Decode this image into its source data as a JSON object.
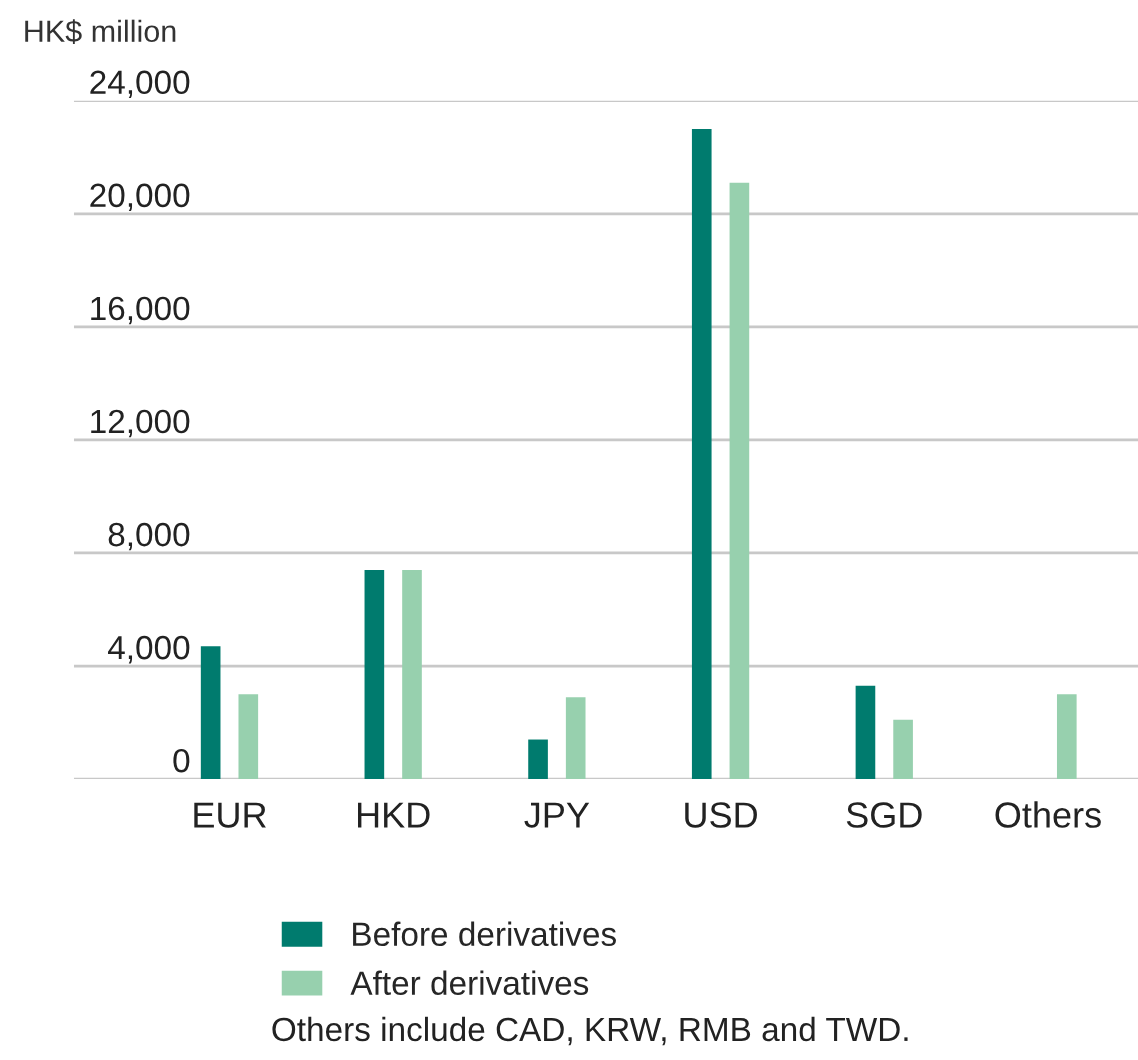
{
  "chart_data": {
    "type": "bar",
    "ylabel": "HK$ million",
    "categories": [
      "EUR",
      "HKD",
      "JPY",
      "USD",
      "SGD",
      "Others"
    ],
    "series": [
      {
        "name": "Before derivatives",
        "color": "#007b6e",
        "values": [
          4700,
          7400,
          1400,
          23000,
          3300,
          null
        ]
      },
      {
        "name": "After derivatives",
        "color": "#97d0ae",
        "values": [
          3000,
          7400,
          2900,
          21100,
          2100,
          3000
        ]
      }
    ],
    "ylim": [
      0,
      24000
    ],
    "yticks": [
      {
        "value": 0,
        "label": "0"
      },
      {
        "value": 4000,
        "label": "4,000"
      },
      {
        "value": 8000,
        "label": "8,000"
      },
      {
        "value": 12000,
        "label": "12,000"
      },
      {
        "value": 16000,
        "label": "16,000"
      },
      {
        "value": 20000,
        "label": "20,000"
      },
      {
        "value": 24000,
        "label": "24,000"
      }
    ],
    "grid": "y",
    "legend": "bottom",
    "annotations": [
      "Others include CAD, KRW, RMB and TWD."
    ]
  }
}
